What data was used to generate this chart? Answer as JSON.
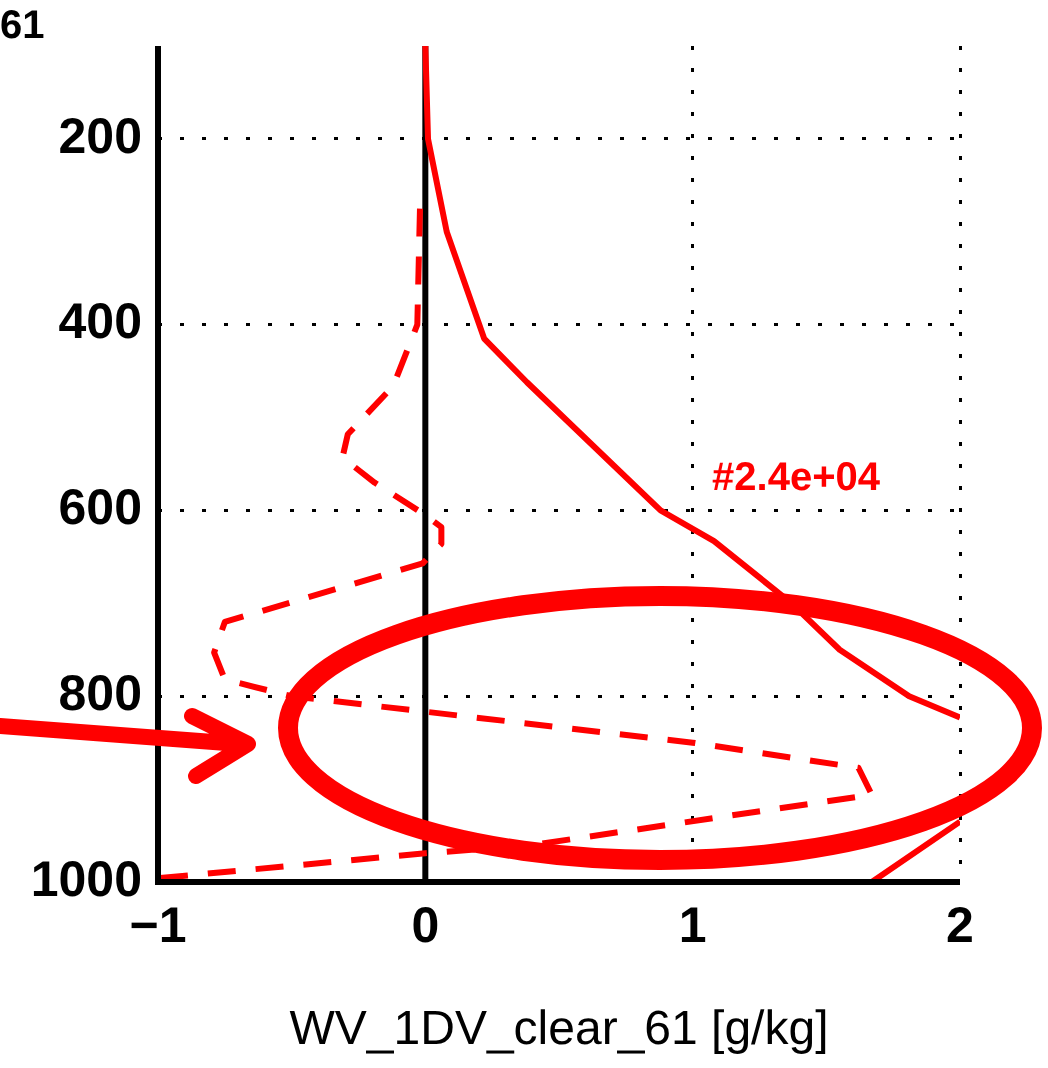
{
  "chart_data": {
    "type": "line",
    "xlabel": "WV_1DV_clear_61 [g/kg]",
    "annotations": [
      "61",
      "#2.4e+04"
    ],
    "xlim": [
      -1,
      2
    ],
    "xticks": [
      -1,
      0,
      1,
      2
    ],
    "ylim": [
      1000,
      100
    ],
    "yticks": [
      200,
      400,
      600,
      800,
      1000
    ],
    "grid": true,
    "legend": false,
    "marker": "none",
    "ref_lines": [
      {
        "axis": "x",
        "value": 0,
        "color": "#000000"
      }
    ],
    "series": [
      {
        "color": "#ff0000",
        "line_style": "solid",
        "x": [
          0,
          0.01,
          0.08,
          0.22,
          0.38,
          0.88,
          1.08,
          1.37,
          1.55,
          1.81,
          2.0,
          null,
          2.0,
          1.67
        ],
        "values": [
          100,
          200,
          300,
          415,
          462,
          600,
          633,
          700,
          750,
          800,
          823,
          null,
          935,
          1000
        ]
      },
      {
        "color": "#ff0000",
        "line_style": "dashed",
        "x": [
          -0.02,
          -0.03,
          -0.12,
          -0.29,
          -0.31,
          -0.19,
          0.0,
          0.06,
          0.06,
          -0.01,
          -0.75,
          -0.79,
          -0.75,
          -0.5,
          1.0,
          1.62,
          1.67,
          0.38,
          0.0,
          -1.0
        ],
        "values": [
          275,
          400,
          466,
          518,
          543,
          570,
          605,
          618,
          636,
          657,
          720,
          753,
          782,
          800,
          850,
          877,
          906,
          961,
          969,
          996
        ]
      }
    ]
  }
}
